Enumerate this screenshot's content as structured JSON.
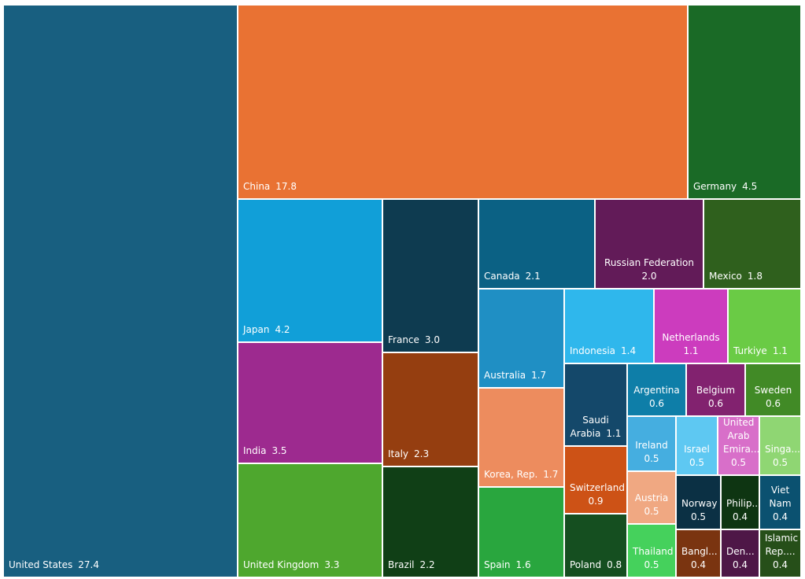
{
  "chart_data": {
    "type": "treemap",
    "title": "",
    "items": [
      {
        "name": "United States",
        "label": "United States",
        "value": 27.4,
        "color": "#185f80"
      },
      {
        "name": "China",
        "label": "China",
        "value": 17.8,
        "color": "#e97233"
      },
      {
        "name": "Germany",
        "label": "Germany",
        "value": 4.5,
        "color": "#1a6a26"
      },
      {
        "name": "Japan",
        "label": "Japan",
        "value": 4.2,
        "color": "#119fd8"
      },
      {
        "name": "India",
        "label": "India",
        "value": 3.5,
        "color": "#9d2a8f"
      },
      {
        "name": "United Kingdom",
        "label": "United Kingdom",
        "value": 3.3,
        "color": "#4ea72e"
      },
      {
        "name": "France",
        "label": "France",
        "value": 3.0,
        "color": "#0e3b50"
      },
      {
        "name": "Italy",
        "label": "Italy",
        "value": 2.3,
        "color": "#953e10"
      },
      {
        "name": "Brazil",
        "label": "Brazil",
        "value": 2.2,
        "color": "#103f16"
      },
      {
        "name": "Canada",
        "label": "Canada",
        "value": 2.1,
        "color": "#0b6184"
      },
      {
        "name": "Russian Federation",
        "label": "Russian Federation",
        "value": 2.0,
        "color": "#621b58"
      },
      {
        "name": "Mexico",
        "label": "Mexico",
        "value": 1.8,
        "color": "#2f601d"
      },
      {
        "name": "Australia",
        "label": "Australia",
        "value": 1.7,
        "color": "#1f8fc4"
      },
      {
        "name": "Korea, Rep.",
        "label": "Korea, Rep.",
        "value": 1.7,
        "color": "#ed8c5e"
      },
      {
        "name": "Spain",
        "label": "Spain",
        "value": 1.6,
        "color": "#29a63e"
      },
      {
        "name": "Indonesia",
        "label": "Indonesia",
        "value": 1.4,
        "color": "#2fb7ec"
      },
      {
        "name": "Netherlands",
        "label": "Netherlands",
        "value": 1.1,
        "color": "#cc3cbe"
      },
      {
        "name": "Turkiye",
        "label": "Turkiye",
        "value": 1.1,
        "color": "#6acb45"
      },
      {
        "name": "Saudi Arabia",
        "label": "Saudi Arabia",
        "value": 1.1,
        "color": "#14486a"
      },
      {
        "name": "Switzerland",
        "label": "Switzerland",
        "value": 0.9,
        "color": "#cd5216"
      },
      {
        "name": "Poland",
        "label": "Poland",
        "value": 0.8,
        "color": "#154f20"
      },
      {
        "name": "Argentina",
        "label": "Argentina",
        "value": 0.6,
        "color": "#0e7ea8"
      },
      {
        "name": "Belgium",
        "label": "Belgium",
        "value": 0.6,
        "color": "#82226f"
      },
      {
        "name": "Sweden",
        "label": "Sweden",
        "value": 0.6,
        "color": "#418a26"
      },
      {
        "name": "Ireland",
        "label": "Ireland",
        "value": 0.5,
        "color": "#45aee0"
      },
      {
        "name": "Israel",
        "label": "Israel",
        "value": 0.5,
        "color": "#5ec8f2"
      },
      {
        "name": "United Arab Emirates",
        "label": "United Arab Emira...",
        "value": 0.5,
        "color": "#d86fc9"
      },
      {
        "name": "Singapore",
        "label": "Singa...",
        "value": 0.5,
        "color": "#8fd673"
      },
      {
        "name": "Austria",
        "label": "Austria",
        "value": 0.5,
        "color": "#f0a882"
      },
      {
        "name": "Thailand",
        "label": "Thailand",
        "value": 0.5,
        "color": "#45d15c"
      },
      {
        "name": "Norway",
        "label": "Norway",
        "value": 0.5,
        "color": "#0b3044"
      },
      {
        "name": "Philippines",
        "label": "Philip...",
        "value": 0.4,
        "color": "#0e3512"
      },
      {
        "name": "Viet Nam",
        "label": "Viet Nam",
        "value": 0.4,
        "color": "#0b5170"
      },
      {
        "name": "Bangladesh",
        "label": "Bangl...",
        "value": 0.4,
        "color": "#7a3410"
      },
      {
        "name": "Denmark",
        "label": "Den...",
        "value": 0.4,
        "color": "#4e1747"
      },
      {
        "name": "Iran, Islamic Rep.",
        "label": "Iran, Islamic Rep....",
        "value": 0.4,
        "color": "#264f19"
      }
    ]
  }
}
